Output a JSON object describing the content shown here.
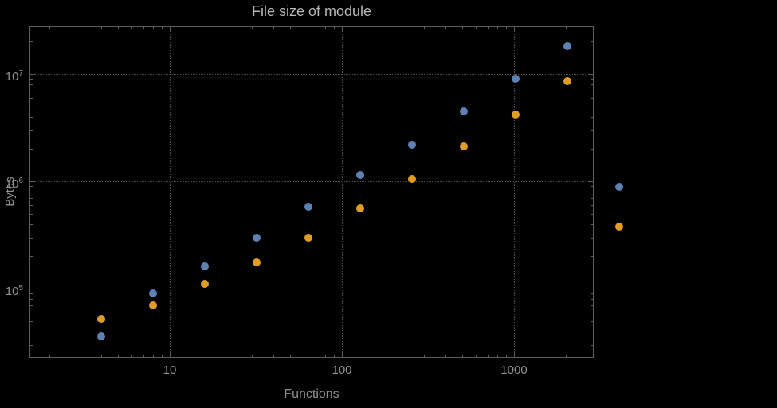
{
  "chart": {
    "title": "File size of module",
    "xlabel": "Functions",
    "ylabel": "Bytes"
  },
  "chart_data": {
    "type": "scatter",
    "title": "File size of module",
    "xlabel": "Functions",
    "ylabel": "Bytes",
    "x_scale": "log",
    "y_scale": "log",
    "x": [
      4,
      8,
      16,
      32,
      64,
      128,
      256,
      512,
      1024,
      2048,
      4096
    ],
    "series": [
      {
        "name": "blue-series",
        "color": "#5e81b5",
        "values": [
          36000,
          90000,
          160000,
          300000,
          580000,
          1150000,
          2200000,
          4500000,
          9000000,
          18000000,
          880000
        ]
      },
      {
        "name": "orange-series",
        "color": "#e09c24",
        "values": [
          52000,
          70000,
          110000,
          175000,
          300000,
          560000,
          1050000,
          2100000,
          4200000,
          8500000,
          380000
        ]
      }
    ],
    "x_ticks": [
      10,
      100,
      1000
    ],
    "x_tick_labels": [
      "10",
      "100",
      "1000"
    ],
    "y_ticks": [
      100000,
      1000000,
      10000000
    ],
    "y_tick_labels": [
      {
        "base": "10",
        "exp": "5"
      },
      {
        "base": "10",
        "exp": "6"
      },
      {
        "base": "10",
        "exp": "7"
      }
    ],
    "xlim_log10": [
      0.185,
      3.463
    ],
    "ylim_log10": [
      4.356,
      7.444
    ],
    "grid": "major-dotted",
    "legend": "none",
    "background": "#000000",
    "frame_color": "#5e5e5e",
    "grid_color": "#4e4e4e",
    "label_color": "#919191",
    "title_color": "#b6b6b6"
  }
}
